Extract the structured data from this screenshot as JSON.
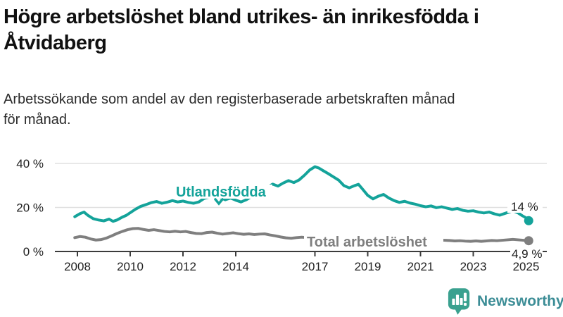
{
  "header": {
    "title_line1": "Högre arbetslöshet bland utrikes- än inrikesfödda i",
    "title_line2": "Åtvidaberg",
    "subtitle_line1": "Arbetssökande som andel av den registerbaserade arbetskraften månad",
    "subtitle_line2": "för månad."
  },
  "chart_data": {
    "type": "line",
    "title": "Högre arbetslöshet bland utrikes- än inrikesfödda i Åtvidaberg",
    "subtitle": "Arbetssökande som andel av den registerbaserade arbetskraften månad för månad.",
    "grid": "horizontal",
    "legend": "inline-labels",
    "colors": {
      "grid_light": "#e0e0e0",
      "axis_dark": "#3c3c3c",
      "text_dark": "#1a1a1a"
    },
    "x_axis": {
      "ticks": [
        2008,
        2010,
        2012,
        2014,
        2017,
        2019,
        2021,
        2023,
        2025
      ],
      "range": [
        2007.9,
        2025.8
      ]
    },
    "y_axis": {
      "ticks": [
        0,
        20,
        40
      ],
      "tick_suffix": " %",
      "range": [
        0,
        40
      ]
    },
    "series": [
      {
        "name": "Utlandsfödda",
        "color": "#14a39a",
        "end_label": "14 %",
        "end_value": 14,
        "points": [
          [
            2007.9,
            15.8
          ],
          [
            2008.1,
            17.2
          ],
          [
            2008.25,
            17.9
          ],
          [
            2008.4,
            16.4
          ],
          [
            2008.6,
            14.9
          ],
          [
            2008.8,
            14.3
          ],
          [
            2009.0,
            13.9
          ],
          [
            2009.2,
            14.7
          ],
          [
            2009.35,
            13.7
          ],
          [
            2009.5,
            14.3
          ],
          [
            2009.7,
            15.6
          ],
          [
            2009.85,
            16.4
          ],
          [
            2010.0,
            17.6
          ],
          [
            2010.2,
            19.2
          ],
          [
            2010.4,
            20.5
          ],
          [
            2010.6,
            21.3
          ],
          [
            2010.8,
            22.2
          ],
          [
            2011.0,
            22.7
          ],
          [
            2011.2,
            21.9
          ],
          [
            2011.4,
            22.4
          ],
          [
            2011.6,
            23.1
          ],
          [
            2011.8,
            22.5
          ],
          [
            2012.0,
            22.9
          ],
          [
            2012.2,
            22.3
          ],
          [
            2012.4,
            21.9
          ],
          [
            2012.6,
            22.5
          ],
          [
            2012.8,
            24.1
          ],
          [
            2013.0,
            24.7
          ],
          [
            2013.2,
            25.5
          ],
          [
            2013.4,
            24.6
          ],
          [
            2013.6,
            23.5
          ],
          [
            2013.8,
            24.3
          ],
          [
            2014.0,
            23.3
          ],
          [
            2014.2,
            22.5
          ],
          [
            2014.4,
            23.5
          ],
          [
            2014.6,
            25.0
          ],
          [
            2014.8,
            26.2
          ],
          [
            2015.0,
            27.4
          ],
          [
            2015.2,
            29.2
          ],
          [
            2015.4,
            30.6
          ],
          [
            2015.6,
            29.7
          ],
          [
            2015.8,
            31.1
          ],
          [
            2016.0,
            32.2
          ],
          [
            2016.2,
            31.3
          ],
          [
            2016.4,
            32.5
          ],
          [
            2016.6,
            34.6
          ],
          [
            2016.8,
            37.0
          ],
          [
            2017.0,
            38.5
          ],
          [
            2017.15,
            37.9
          ],
          [
            2017.3,
            36.8
          ],
          [
            2017.5,
            35.4
          ],
          [
            2017.7,
            33.9
          ],
          [
            2017.9,
            32.4
          ],
          [
            2018.1,
            29.9
          ],
          [
            2018.3,
            28.9
          ],
          [
            2018.5,
            29.9
          ],
          [
            2018.65,
            30.5
          ],
          [
            2018.8,
            28.4
          ],
          [
            2019.0,
            25.5
          ],
          [
            2019.2,
            23.9
          ],
          [
            2019.4,
            25.1
          ],
          [
            2019.6,
            25.9
          ],
          [
            2019.8,
            24.3
          ],
          [
            2020.0,
            23.1
          ],
          [
            2020.2,
            22.3
          ],
          [
            2020.4,
            22.8
          ],
          [
            2020.6,
            22.0
          ],
          [
            2020.8,
            21.5
          ],
          [
            2021.0,
            20.8
          ],
          [
            2021.2,
            20.3
          ],
          [
            2021.4,
            20.7
          ],
          [
            2021.6,
            19.9
          ],
          [
            2021.8,
            20.3
          ],
          [
            2022.0,
            19.7
          ],
          [
            2022.2,
            19.1
          ],
          [
            2022.4,
            19.5
          ],
          [
            2022.6,
            18.7
          ],
          [
            2022.8,
            18.3
          ],
          [
            2023.0,
            18.5
          ],
          [
            2023.2,
            17.9
          ],
          [
            2023.4,
            17.5
          ],
          [
            2023.6,
            17.9
          ],
          [
            2023.8,
            17.1
          ],
          [
            2024.0,
            16.5
          ],
          [
            2024.2,
            17.3
          ],
          [
            2024.5,
            18.5
          ],
          [
            2024.7,
            17.5
          ],
          [
            2024.85,
            16.3
          ],
          [
            2025.0,
            15.3
          ],
          [
            2025.1,
            14.0
          ]
        ]
      },
      {
        "name": "Total arbetslöshet",
        "color": "#7f7f7f",
        "end_label": "4,9 %",
        "end_value": 4.9,
        "points": [
          [
            2007.9,
            6.3
          ],
          [
            2008.1,
            6.8
          ],
          [
            2008.3,
            6.5
          ],
          [
            2008.5,
            5.7
          ],
          [
            2008.7,
            5.2
          ],
          [
            2008.9,
            5.4
          ],
          [
            2009.1,
            6.1
          ],
          [
            2009.3,
            7.1
          ],
          [
            2009.5,
            8.2
          ],
          [
            2009.7,
            9.1
          ],
          [
            2009.9,
            9.9
          ],
          [
            2010.1,
            10.4
          ],
          [
            2010.3,
            10.5
          ],
          [
            2010.5,
            10.0
          ],
          [
            2010.7,
            9.6
          ],
          [
            2010.9,
            9.9
          ],
          [
            2011.1,
            9.5
          ],
          [
            2011.3,
            9.1
          ],
          [
            2011.5,
            8.9
          ],
          [
            2011.7,
            9.2
          ],
          [
            2011.9,
            8.9
          ],
          [
            2012.1,
            9.1
          ],
          [
            2012.3,
            8.6
          ],
          [
            2012.5,
            8.2
          ],
          [
            2012.7,
            8.1
          ],
          [
            2012.9,
            8.6
          ],
          [
            2013.1,
            8.8
          ],
          [
            2013.3,
            8.3
          ],
          [
            2013.5,
            7.9
          ],
          [
            2013.7,
            8.2
          ],
          [
            2013.9,
            8.5
          ],
          [
            2014.1,
            8.1
          ],
          [
            2014.3,
            7.8
          ],
          [
            2014.5,
            8.0
          ],
          [
            2014.7,
            7.7
          ],
          [
            2014.9,
            7.9
          ],
          [
            2015.1,
            8.0
          ],
          [
            2015.3,
            7.5
          ],
          [
            2015.5,
            7.1
          ],
          [
            2015.7,
            6.6
          ],
          [
            2015.9,
            6.2
          ],
          [
            2016.1,
            6.0
          ],
          [
            2016.3,
            6.3
          ],
          [
            2016.5,
            6.5
          ],
          [
            2016.7,
            6.3
          ],
          [
            2016.9,
            6.7
          ],
          [
            2017.1,
            6.8
          ],
          [
            2017.3,
            6.4
          ],
          [
            2017.5,
            6.1
          ],
          [
            2017.7,
            6.3
          ],
          [
            2017.9,
            6.0
          ],
          [
            2018.1,
            6.2
          ],
          [
            2018.3,
            5.9
          ],
          [
            2018.5,
            5.7
          ],
          [
            2018.7,
            5.9
          ],
          [
            2018.9,
            5.6
          ],
          [
            2019.1,
            5.8
          ],
          [
            2019.3,
            5.5
          ],
          [
            2019.5,
            5.7
          ],
          [
            2019.7,
            5.4
          ],
          [
            2019.9,
            5.7
          ],
          [
            2020.1,
            6.1
          ],
          [
            2020.3,
            6.7
          ],
          [
            2020.5,
            6.9
          ],
          [
            2020.7,
            6.5
          ],
          [
            2020.9,
            6.2
          ],
          [
            2021.1,
            5.9
          ],
          [
            2021.3,
            5.6
          ],
          [
            2021.5,
            5.4
          ],
          [
            2021.7,
            5.2
          ],
          [
            2021.9,
            5.1
          ],
          [
            2022.1,
            5.0
          ],
          [
            2022.3,
            4.8
          ],
          [
            2022.5,
            4.9
          ],
          [
            2022.7,
            4.7
          ],
          [
            2022.9,
            4.6
          ],
          [
            2023.1,
            4.8
          ],
          [
            2023.3,
            4.6
          ],
          [
            2023.5,
            4.8
          ],
          [
            2023.7,
            5.0
          ],
          [
            2023.9,
            4.9
          ],
          [
            2024.1,
            5.1
          ],
          [
            2024.3,
            5.3
          ],
          [
            2024.5,
            5.5
          ],
          [
            2024.7,
            5.3
          ],
          [
            2024.9,
            5.1
          ],
          [
            2025.1,
            4.9
          ]
        ]
      }
    ]
  },
  "footer": {
    "brand": "Newsworthy",
    "logo_icon": "speech-bubble-bar-chart-icon",
    "brand_color": "#3c8d96",
    "icon_color": "#3aa18f"
  }
}
